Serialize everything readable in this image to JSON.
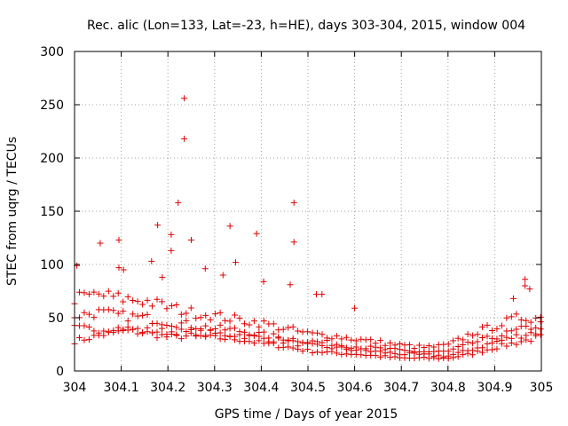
{
  "chart_data": {
    "type": "scatter",
    "title": "Rec. alic (Lon=133, Lat=-23, h=HE), days 303-304, 2015, window 004",
    "xlabel": "GPS time / Days of year 2015",
    "ylabel": "STEC from uqrg / TECUs",
    "xlim": [
      304,
      305
    ],
    "ylim": [
      0,
      300
    ],
    "xticks": [
      "304",
      "304.1",
      "304.2",
      "304.3",
      "304.4",
      "304.5",
      "304.6",
      "304.7",
      "304.8",
      "304.9",
      "305"
    ],
    "yticks": [
      "0",
      "50",
      "100",
      "150",
      "200",
      "250",
      "300"
    ],
    "grid": true,
    "marker": "+",
    "color": "#e00000",
    "outliers": [
      {
        "x": 304.235,
        "y": 256
      },
      {
        "x": 304.235,
        "y": 218
      },
      {
        "x": 304.222,
        "y": 158
      },
      {
        "x": 304.47,
        "y": 158
      },
      {
        "x": 304.178,
        "y": 137
      },
      {
        "x": 304.333,
        "y": 136
      },
      {
        "x": 304.39,
        "y": 129
      },
      {
        "x": 304.207,
        "y": 128
      },
      {
        "x": 304.25,
        "y": 123
      },
      {
        "x": 304.095,
        "y": 123
      },
      {
        "x": 304.47,
        "y": 121
      },
      {
        "x": 304.055,
        "y": 120
      },
      {
        "x": 304.207,
        "y": 113
      },
      {
        "x": 304.165,
        "y": 103
      },
      {
        "x": 304.345,
        "y": 102
      },
      {
        "x": 304.005,
        "y": 99
      },
      {
        "x": 304.095,
        "y": 97
      },
      {
        "x": 304.105,
        "y": 95
      },
      {
        "x": 304.28,
        "y": 96
      },
      {
        "x": 304.318,
        "y": 90
      },
      {
        "x": 304.965,
        "y": 86
      },
      {
        "x": 304.188,
        "y": 88
      },
      {
        "x": 304.405,
        "y": 84
      },
      {
        "x": 304.965,
        "y": 80
      },
      {
        "x": 304.462,
        "y": 81
      },
      {
        "x": 304.975,
        "y": 77
      },
      {
        "x": 304.518,
        "y": 72
      },
      {
        "x": 304.53,
        "y": 72
      },
      {
        "x": 304.94,
        "y": 68
      },
      {
        "x": 304.6,
        "y": 59
      }
    ],
    "series": [
      {
        "x": [
          304.0,
          304.05,
          304.1,
          304.15,
          304.2,
          304.25,
          304.3,
          304.35,
          304.4,
          304.45,
          304.5,
          304.55,
          304.6,
          304.65,
          304.7,
          304.75,
          304.8,
          304.85,
          304.9,
          304.95,
          305.0
        ],
        "values": [
          28,
          33,
          38,
          36,
          32,
          33,
          31,
          30,
          26,
          23,
          19,
          17,
          16,
          14,
          12,
          12,
          12,
          16,
          22,
          27,
          32
        ]
      },
      {
        "x": [
          304.0,
          304.05,
          304.1,
          304.15,
          304.2,
          304.25,
          304.3,
          304.35,
          304.4,
          304.45,
          304.5,
          304.55,
          304.6,
          304.65,
          304.7,
          304.75,
          304.8,
          304.85,
          304.9,
          304.95,
          305.0
        ],
        "values": [
          40,
          39,
          40,
          38,
          37,
          36,
          35,
          34,
          31,
          28,
          24,
          22,
          20,
          18,
          16,
          15,
          14,
          20,
          27,
          33,
          38
        ]
      },
      {
        "x": [
          304.0,
          304.05,
          304.1,
          304.15,
          304.2,
          304.25,
          304.3,
          304.35,
          304.4,
          304.45,
          304.5,
          304.55,
          304.6,
          304.65,
          304.7,
          304.75,
          304.8,
          304.85,
          304.9,
          304.95,
          305.0
        ],
        "values": [
          52,
          55,
          52,
          50,
          46,
          43,
          40,
          38,
          34,
          31,
          28,
          26,
          23,
          21,
          19,
          18,
          18,
          26,
          32,
          38,
          44
        ]
      },
      {
        "x": [
          304.0,
          304.05,
          304.1,
          304.15,
          304.2,
          304.25,
          304.3,
          304.35,
          304.4,
          304.45,
          304.5,
          304.55,
          304.6,
          304.65,
          304.7,
          304.75,
          304.8,
          304.85,
          304.9,
          304.95,
          305.0
        ],
        "values": [
          68,
          72,
          68,
          66,
          60,
          55,
          52,
          48,
          45,
          40,
          35,
          33,
          30,
          27,
          24,
          22,
          24,
          35,
          42,
          50,
          50
        ]
      }
    ]
  }
}
